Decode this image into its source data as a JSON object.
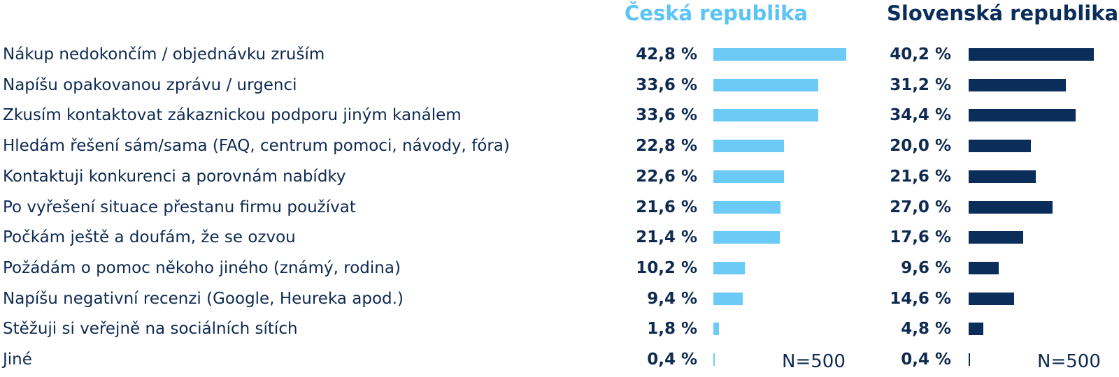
{
  "chart_data": {
    "type": "bar",
    "orientation": "horizontal",
    "categories": [
      "Nákup nedokončím / objednávku zruším",
      "Napíšu opakovanou zprávu / urgenci",
      "Zkusím kontaktovat zákaznickou podporu jiným kanálem",
      "Hledám řešení sám/sama (FAQ, centrum pomoci, návody, fóra)",
      "Kontaktuji konkurenci a porovnám nabídky",
      "Po vyřešení situace přestanu firmu používat",
      "Počkám ještě a doufám, že se ozvou",
      "Požádám o pomoc někoho jiného (známý, rodina)",
      "Napíšu negativní recenzi (Google, Heureka apod.)",
      "Stěžuji si veřejně na sociálních sítích",
      "Jiné"
    ],
    "series": [
      {
        "name": "Česká republika",
        "color": "#6ccaf7",
        "values": [
          42.8,
          33.6,
          33.6,
          22.8,
          22.6,
          21.6,
          21.4,
          10.2,
          9.4,
          1.8,
          0.4
        ],
        "value_labels": [
          "42,8 %",
          "33,6 %",
          "33,6 %",
          "22,8 %",
          "22,6 %",
          "21,6 %",
          "21,4 %",
          "10,2 %",
          "9,4 %",
          "1,8 %",
          "0,4 %"
        ],
        "note": "N=500"
      },
      {
        "name": "Slovenská republika",
        "color": "#0b2d5a",
        "values": [
          40.2,
          31.2,
          34.4,
          20.0,
          21.6,
          27.0,
          17.6,
          9.6,
          14.6,
          4.8,
          0.4
        ],
        "value_labels": [
          "40,2 %",
          "31,2 %",
          "34,4 %",
          "20,0 %",
          "21,6 %",
          "27,0 %",
          "17,6 %",
          "9,6 %",
          "14,6 %",
          "4,8 %",
          "0,4 %"
        ],
        "note": "N=500"
      }
    ],
    "xlim": [
      0,
      45
    ],
    "grid": false
  }
}
